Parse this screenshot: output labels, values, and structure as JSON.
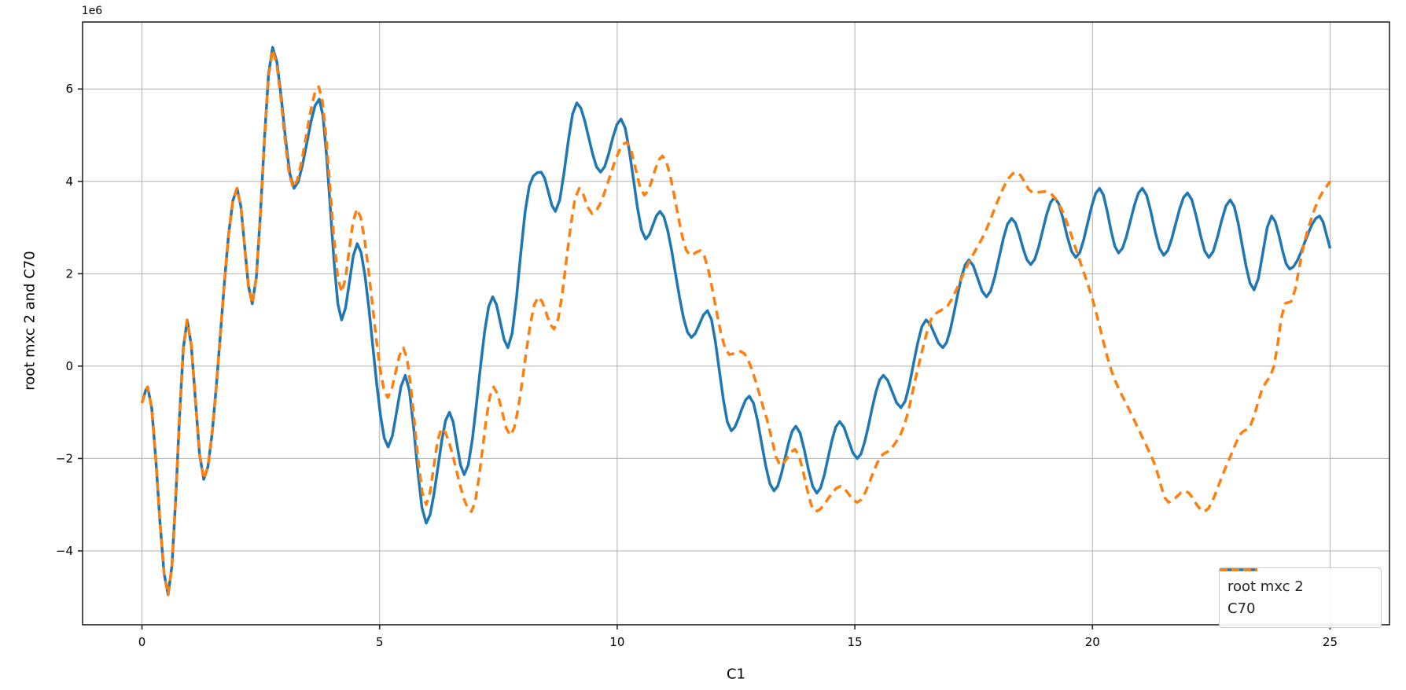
{
  "chart_data": {
    "type": "line",
    "title": "",
    "xlabel": "C1",
    "ylabel": "root mxc 2 and C70",
    "offset_text": "1e6",
    "y_units_multiplier": 1000000,
    "xlim": [
      -1.25,
      26.25
    ],
    "ylim": [
      -5.6,
      7.45
    ],
    "xticks": [
      0,
      5,
      10,
      15,
      20,
      25
    ],
    "yticks": [
      -4,
      -2,
      0,
      2,
      4,
      6
    ],
    "grid": true,
    "grid_color": "#b0b0b0",
    "spine_color": "#262626",
    "legend": {
      "position": "lower right",
      "entries": [
        "root mxc 2",
        "C70"
      ]
    },
    "series": [
      {
        "name": "root mxc 2",
        "color": "#1f77b4",
        "line_style": "solid",
        "line_width": 3.5,
        "points": [
          [
            0.0,
            -0.8
          ],
          [
            0.12,
            -0.45
          ],
          [
            0.55,
            -4.95
          ],
          [
            0.95,
            1.0
          ],
          [
            1.3,
            -2.45
          ],
          [
            2.0,
            3.85
          ],
          [
            2.32,
            1.35
          ],
          [
            2.75,
            6.9
          ],
          [
            3.2,
            3.85
          ],
          [
            3.73,
            5.78
          ],
          [
            4.2,
            1.0
          ],
          [
            4.53,
            2.65
          ],
          [
            5.18,
            -1.75
          ],
          [
            5.54,
            -0.2
          ],
          [
            5.98,
            -3.4
          ],
          [
            6.47,
            -1.0
          ],
          [
            6.78,
            -2.35
          ],
          [
            7.38,
            1.5
          ],
          [
            7.7,
            0.4
          ],
          [
            8.15,
            3.9
          ],
          [
            8.4,
            4.2
          ],
          [
            8.7,
            3.35
          ],
          [
            9.15,
            5.7
          ],
          [
            9.65,
            4.2
          ],
          [
            10.08,
            5.35
          ],
          [
            10.6,
            2.75
          ],
          [
            10.9,
            3.35
          ],
          [
            11.56,
            0.62
          ],
          [
            11.9,
            1.2
          ],
          [
            12.4,
            -1.4
          ],
          [
            12.78,
            -0.65
          ],
          [
            13.3,
            -2.7
          ],
          [
            13.76,
            -1.3
          ],
          [
            14.2,
            -2.75
          ],
          [
            14.68,
            -1.2
          ],
          [
            15.05,
            -2.0
          ],
          [
            15.6,
            -0.2
          ],
          [
            15.97,
            -0.9
          ],
          [
            16.5,
            1.0
          ],
          [
            16.85,
            0.4
          ],
          [
            17.4,
            2.3
          ],
          [
            17.77,
            1.5
          ],
          [
            18.3,
            3.2
          ],
          [
            18.7,
            2.2
          ],
          [
            19.2,
            3.65
          ],
          [
            19.65,
            2.35
          ],
          [
            20.15,
            3.85
          ],
          [
            20.55,
            2.45
          ],
          [
            21.05,
            3.85
          ],
          [
            21.5,
            2.4
          ],
          [
            22.0,
            3.75
          ],
          [
            22.45,
            2.35
          ],
          [
            22.9,
            3.6
          ],
          [
            23.4,
            1.65
          ],
          [
            23.77,
            3.25
          ],
          [
            24.15,
            2.1
          ],
          [
            24.78,
            3.25
          ],
          [
            25.0,
            2.55
          ]
        ]
      },
      {
        "name": "C70",
        "color": "#ff7f0e",
        "line_style": "dashed",
        "line_width": 3.5,
        "points": [
          [
            0.0,
            -0.8
          ],
          [
            0.12,
            -0.45
          ],
          [
            0.55,
            -4.95
          ],
          [
            0.95,
            1.0
          ],
          [
            1.3,
            -2.45
          ],
          [
            2.0,
            3.85
          ],
          [
            2.32,
            1.35
          ],
          [
            2.75,
            6.85
          ],
          [
            3.18,
            3.87
          ],
          [
            3.72,
            6.05
          ],
          [
            4.2,
            1.6
          ],
          [
            4.52,
            3.4
          ],
          [
            5.17,
            -0.68
          ],
          [
            5.5,
            0.4
          ],
          [
            5.98,
            -3.0
          ],
          [
            6.3,
            -1.35
          ],
          [
            6.93,
            -3.15
          ],
          [
            7.4,
            -0.45
          ],
          [
            7.75,
            -1.5
          ],
          [
            8.34,
            1.5
          ],
          [
            8.67,
            0.8
          ],
          [
            9.2,
            3.85
          ],
          [
            9.47,
            3.3
          ],
          [
            10.2,
            4.85
          ],
          [
            10.57,
            3.7
          ],
          [
            10.95,
            4.55
          ],
          [
            11.53,
            2.4
          ],
          [
            11.75,
            2.5
          ],
          [
            12.36,
            0.25
          ],
          [
            12.6,
            0.32
          ],
          [
            13.15,
            -1.15
          ],
          [
            13.43,
            -2.15
          ],
          [
            13.74,
            -1.8
          ],
          [
            14.17,
            -3.15
          ],
          [
            14.7,
            -2.6
          ],
          [
            15.05,
            -2.95
          ],
          [
            15.55,
            -1.95
          ],
          [
            15.75,
            -1.8
          ],
          [
            16.05,
            -1.25
          ],
          [
            16.35,
            0.05
          ],
          [
            16.6,
            1.0
          ],
          [
            16.8,
            1.2
          ],
          [
            16.95,
            1.3
          ],
          [
            17.4,
            2.25
          ],
          [
            17.67,
            2.75
          ],
          [
            18.4,
            4.2
          ],
          [
            18.75,
            3.75
          ],
          [
            19.0,
            3.78
          ],
          [
            19.3,
            3.5
          ],
          [
            19.76,
            2.2
          ],
          [
            20.0,
            1.45
          ],
          [
            20.4,
            -0.1
          ],
          [
            20.8,
            -1.0
          ],
          [
            21.1,
            -1.65
          ],
          [
            21.3,
            -2.1
          ],
          [
            21.6,
            -2.95
          ],
          [
            21.95,
            -2.7
          ],
          [
            22.35,
            -3.15
          ],
          [
            22.8,
            -2.2
          ],
          [
            23.13,
            -1.45
          ],
          [
            23.32,
            -1.3
          ],
          [
            23.57,
            -0.5
          ],
          [
            23.82,
            0.0
          ],
          [
            24.05,
            1.35
          ],
          [
            24.18,
            1.4
          ],
          [
            24.45,
            2.65
          ],
          [
            24.73,
            3.55
          ],
          [
            25.0,
            4.0
          ]
        ]
      }
    ]
  }
}
